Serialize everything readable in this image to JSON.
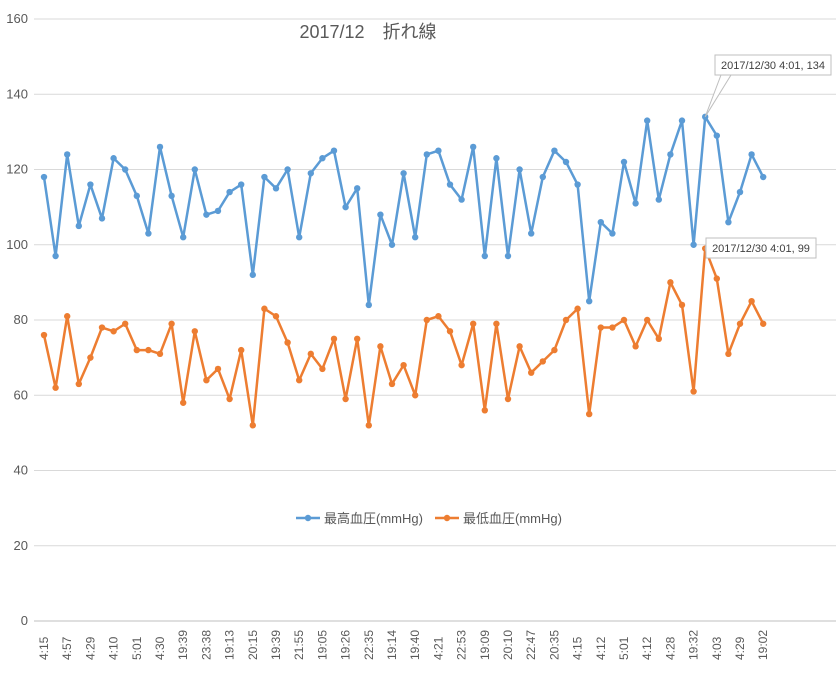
{
  "chart_data": {
    "type": "line",
    "title": "2017/12　折れ線",
    "xlabel": "",
    "ylabel": "",
    "ylim": [
      0,
      160
    ],
    "yticks": [
      0,
      20,
      40,
      60,
      80,
      100,
      120,
      140,
      160
    ],
    "grid": true,
    "legend_position": "center",
    "categories": [
      "4:15",
      "",
      "4:57",
      "",
      "4:29",
      "",
      "4:10",
      "",
      "5:01",
      "",
      "4:30",
      "",
      "19:39",
      "",
      "23:38",
      "",
      "19:13",
      "",
      "20:15",
      "",
      "19:39",
      "",
      "21:55",
      "",
      "19:05",
      "",
      "19:26",
      "",
      "22:35",
      "",
      "19:14",
      "",
      "19:40",
      "",
      "4:21",
      "",
      "22:53",
      "",
      "19:09",
      "",
      "20:10",
      "",
      "22:47",
      "",
      "20:35",
      "",
      "4:15",
      "",
      "4:12",
      "",
      "5:01",
      "",
      "4:12",
      "",
      "4:28",
      "",
      "19:32",
      "",
      "4:03",
      "",
      "4:29",
      "",
      "19:02"
    ],
    "series": [
      {
        "name": "最高血圧(mmHg)",
        "color": "#5B9BD5",
        "values": [
          118,
          97,
          124,
          105,
          116,
          107,
          123,
          120,
          113,
          103,
          126,
          113,
          102,
          120,
          108,
          109,
          114,
          116,
          92,
          118,
          115,
          120,
          102,
          119,
          123,
          125,
          110,
          115,
          84,
          108,
          100,
          119,
          102,
          124,
          125,
          116,
          112,
          126,
          97,
          123,
          97,
          120,
          103,
          118,
          125,
          122,
          116,
          85,
          106,
          103,
          122,
          111,
          133,
          112,
          124,
          133,
          100,
          134,
          129,
          106,
          114,
          124,
          118
        ]
      },
      {
        "name": "最低血圧(mmHg)",
        "color": "#ED7D31",
        "values": [
          76,
          62,
          81,
          63,
          70,
          78,
          77,
          79,
          72,
          72,
          71,
          79,
          58,
          77,
          64,
          67,
          59,
          72,
          52,
          83,
          81,
          74,
          64,
          71,
          67,
          75,
          59,
          75,
          52,
          73,
          63,
          68,
          60,
          80,
          81,
          77,
          68,
          79,
          56,
          79,
          59,
          73,
          66,
          69,
          72,
          80,
          83,
          55,
          78,
          78,
          80,
          73,
          80,
          75,
          90,
          84,
          61,
          99,
          91,
          71,
          79,
          85,
          79
        ]
      }
    ],
    "annotations": [
      {
        "series": 0,
        "index": 57,
        "text": "2017/12/30 4:01, 134"
      },
      {
        "series": 1,
        "index": 57,
        "text": "2017/12/30 4:01, 99"
      }
    ]
  }
}
